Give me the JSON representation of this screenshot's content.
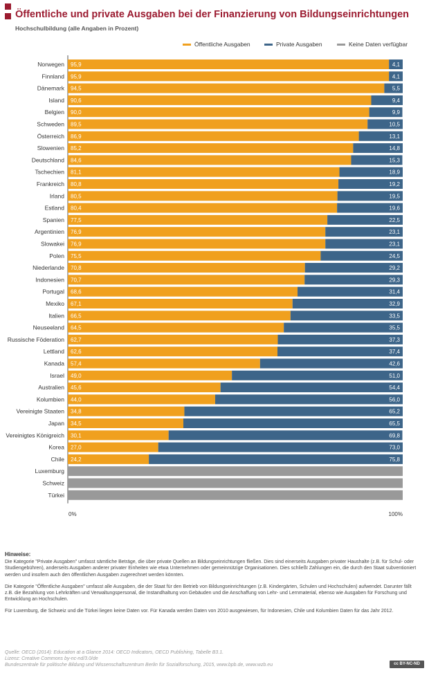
{
  "title": "Öffentliche und private Ausgaben bei der Finanzierung von Bildungseinrichtungen",
  "subtitle": "Hochschulbildung (alle Angaben in Prozent)",
  "legend": {
    "public": "Öffentliche Ausgaben",
    "private": "Private Ausgaben",
    "nodata": "Keine Daten verfügbar"
  },
  "colors": {
    "public": "#f0a01e",
    "private": "#3d6589",
    "nodata": "#999999",
    "accent": "#9b1b30"
  },
  "chart_data": {
    "type": "bar",
    "orientation": "horizontal",
    "stacked": true,
    "xlim": [
      0,
      100
    ],
    "x_ticks": [
      "0%",
      "100%"
    ],
    "categories": [
      "Norwegen",
      "Finnland",
      "Dänemark",
      "Island",
      "Belgien",
      "Schweden",
      "Österreich",
      "Slowenien",
      "Deutschland",
      "Tschechien",
      "Frankreich",
      "Irland",
      "Estland",
      "Spanien",
      "Argentinien",
      "Slowakei",
      "Polen",
      "Niederlande",
      "Indonesien",
      "Portugal",
      "Mexiko",
      "Italien",
      "Neuseeland",
      "Russische Föderation",
      "Lettland",
      "Kanada",
      "Israel",
      "Australien",
      "Kolumbien",
      "Vereinigte Staaten",
      "Japan",
      "Vereinigtes Königreich",
      "Korea",
      "Chile",
      "Luxemburg",
      "Schweiz",
      "Türkei"
    ],
    "series": [
      {
        "name": "Öffentliche Ausgaben",
        "values": [
          95.9,
          95.9,
          94.5,
          90.6,
          90.0,
          89.5,
          86.9,
          85.2,
          84.6,
          81.1,
          80.8,
          80.5,
          80.4,
          77.5,
          76.9,
          76.9,
          75.5,
          70.8,
          70.7,
          68.6,
          67.1,
          66.5,
          64.5,
          62.7,
          62.6,
          57.4,
          49.0,
          45.6,
          44.0,
          34.8,
          34.5,
          30.1,
          27.0,
          24.2,
          null,
          null,
          null
        ],
        "labels": [
          "95,9",
          "95,9",
          "94,5",
          "90,6",
          "90,0",
          "89,5",
          "86,9",
          "85,2",
          "84,6",
          "81,1",
          "80,8",
          "80,5",
          "80,4",
          "77,5",
          "76,9",
          "76,9",
          "75,5",
          "70,8",
          "70,7",
          "68,6",
          "67,1",
          "66,5",
          "64,5",
          "62,7",
          "62,6",
          "57,4",
          "49,0",
          "45,6",
          "44,0",
          "34,8",
          "34,5",
          "30,1",
          "27,0",
          "24,2",
          "",
          "",
          ""
        ]
      },
      {
        "name": "Private Ausgaben",
        "values": [
          4.1,
          4.1,
          5.5,
          9.4,
          9.9,
          10.5,
          13.1,
          14.8,
          15.3,
          18.9,
          19.2,
          19.5,
          19.6,
          22.5,
          23.1,
          23.1,
          24.5,
          29.2,
          29.3,
          31.4,
          32.9,
          33.5,
          35.5,
          37.3,
          37.4,
          42.6,
          51.0,
          54.4,
          56.0,
          65.2,
          65.5,
          69.8,
          73.0,
          75.8,
          null,
          null,
          null
        ],
        "labels": [
          "4,1",
          "4,1",
          "5,5",
          "9,4",
          "9,9",
          "10,5",
          "13,1",
          "14,8",
          "15,3",
          "18,9",
          "19,2",
          "19,5",
          "19,6",
          "22,5",
          "23,1",
          "23,1",
          "24,5",
          "29,2",
          "29,3",
          "31,4",
          "32,9",
          "33,5",
          "35,5",
          "37,3",
          "37,4",
          "42,6",
          "51,0",
          "54,4",
          "56,0",
          "65,2",
          "65,5",
          "69,8",
          "73,0",
          "75,8",
          "",
          "",
          ""
        ]
      }
    ],
    "nodata_categories": [
      "Luxemburg",
      "Schweiz",
      "Türkei"
    ],
    "legend_position": "top-right",
    "grid": false
  },
  "notes": {
    "heading": "Hinweise:",
    "p1": "Die Kategorie \"Private Ausgaben\" umfasst sämtliche Beträge, die über private Quellen an Bildungseinrichtungen fließen. Dies sind einerseits Ausgaben privater Haushalte (z.B. für Schul- oder Studiengebühren), anderseits Ausgaben anderer privater Einheiten wie etwa Unternehmen oder gemeinnützige Organisationen. Dies schließt Zahlungen ein, die durch den Staat subventioniert werden und insofern auch den öffentlichen Ausgaben zugerechnet werden könnten.",
    "p2": "Die Kategorie \"Öffentliche Ausgaben\" umfasst alle Ausgaben, die der Staat für den Betrieb von Bildungseinrichtungen (z.B. Kindergärten, Schulen und Hochschulen) aufwendet. Darunter fällt z.B. die Bezahlung von Lehrkräften und Verwaltungspersonal, die Instandhaltung von Gebäuden und die Anschaffung von Lehr- und Lernmaterial, ebenso wie Ausgaben für Forschung und Entwicklung an Hochschulen.",
    "p3": "Für Luxemburg, die Schweiz und die Türkei liegen keine Daten vor. Für Kanada werden Daten von 2010 ausgewiesen, für Indonesien, Chile und Kolumbien Daten für das Jahr 2012."
  },
  "source": {
    "line1": "Quelle: OECD (2014): Education at a Glance 2014: OECD Indicators, OECD Publishing, Tabelle B3.1.",
    "line2": "Lizenz: Creative Commons by-nc-nd/3.0/de",
    "line3": "Bundeszentrale für politische Bildung und Wissenschaftszentrum Berlin für Sozialforschung, 2015, www.bpb.de, www.wzb.eu"
  },
  "license_badge": "cc BY-NC-ND"
}
